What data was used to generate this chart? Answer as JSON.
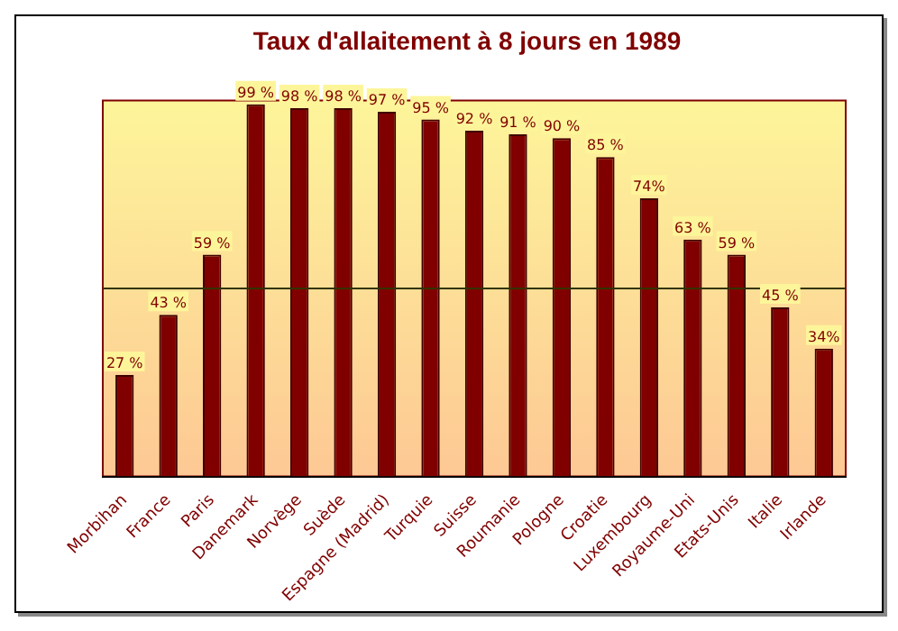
{
  "chart_data": {
    "type": "bar",
    "title": "Taux d'allaitement à 8 jours en 1989",
    "categories": [
      "Morbihan",
      "France",
      "Paris",
      "Danemark",
      "Norvège",
      "Suède",
      "Espagne (Madrid)",
      "Turquie",
      "Suisse",
      "Roumanie",
      "Pologne",
      "Croatie",
      "Luxembourg",
      "Royaume-Uni",
      "Etats-Unis",
      "Italie",
      "Irlande"
    ],
    "values": [
      27,
      43,
      59,
      99,
      98,
      98,
      97,
      95,
      92,
      91,
      90,
      85,
      74,
      63,
      59,
      45,
      34
    ],
    "value_labels": [
      "27 %",
      "43 %",
      "59 %",
      "99 %",
      "98 %",
      "98 %",
      "97 %",
      "95 %",
      "92 %",
      "91 %",
      "90 %",
      "85 %",
      "74%",
      "63 %",
      "59 %",
      "45 %",
      "34%"
    ],
    "color": "#800000",
    "ylim": [
      0,
      100
    ],
    "tick_labels": "x",
    "grid": false,
    "legend": false,
    "ref_lines": [
      {
        "axis": "y",
        "value": 50,
        "color": "#333300"
      }
    ]
  }
}
